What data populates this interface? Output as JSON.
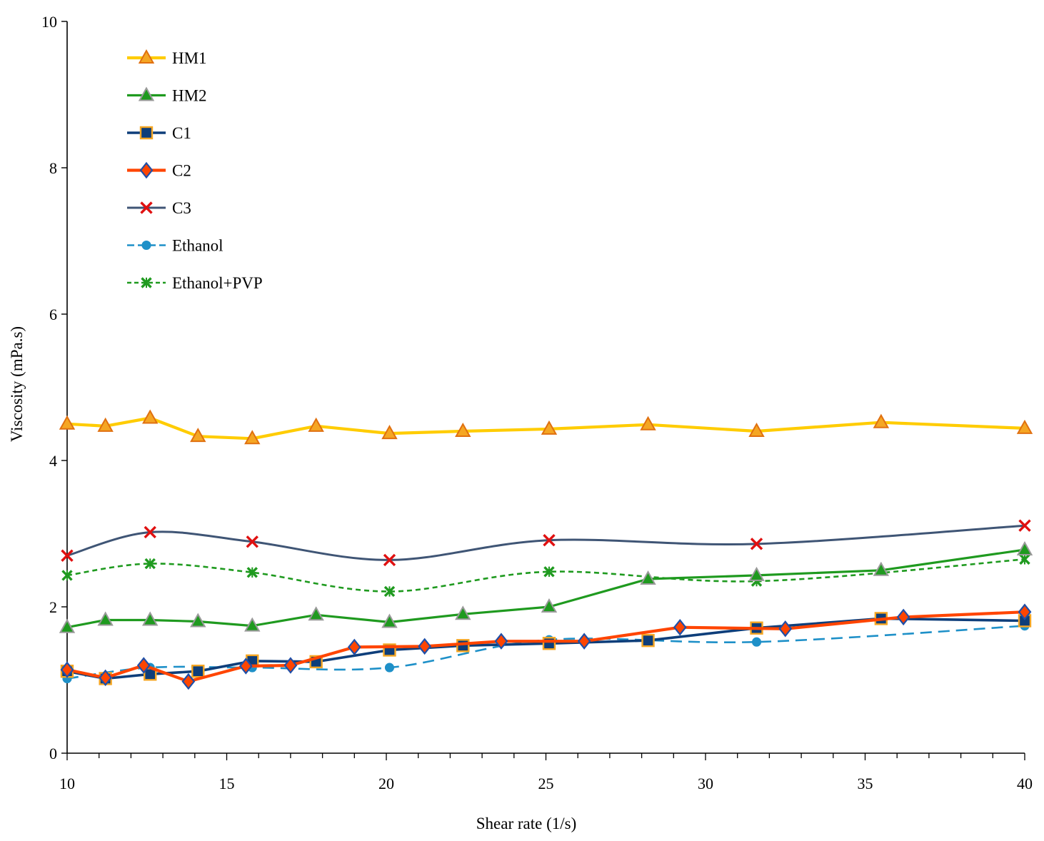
{
  "chart_data": {
    "type": "line",
    "title": "",
    "xlabel": "Shear rate (1/s)",
    "ylabel": "Viscosity  (mPa.s)",
    "xlim": [
      10,
      40
    ],
    "ylim": [
      0,
      10
    ],
    "xticks": [
      10,
      15,
      20,
      25,
      30,
      35,
      40
    ],
    "yticks": [
      0,
      2,
      4,
      6,
      8,
      10
    ],
    "x_minor_step": 1,
    "legend_position": "top-left",
    "grid": false,
    "series": [
      {
        "name": "HM1",
        "color": "#FFCC00",
        "line": "solid",
        "marker": "triangle",
        "marker_fill": "#F5A623",
        "marker_stroke": "#E07010",
        "points": [
          [
            10,
            4.5
          ],
          [
            11.2,
            4.47
          ],
          [
            12.6,
            4.58
          ],
          [
            14.1,
            4.33
          ],
          [
            15.8,
            4.3
          ],
          [
            17.8,
            4.47
          ],
          [
            20.1,
            4.37
          ],
          [
            22.4,
            4.4
          ],
          [
            25.1,
            4.43
          ],
          [
            28.2,
            4.49
          ],
          [
            31.6,
            4.4
          ],
          [
            35.5,
            4.52
          ],
          [
            40,
            4.44
          ]
        ]
      },
      {
        "name": "HM2",
        "color": "#1F9A1F",
        "line": "solid",
        "marker": "triangle",
        "marker_fill": "#1F9A1F",
        "marker_stroke": "#9A9A9A",
        "points": [
          [
            10,
            1.72
          ],
          [
            11.2,
            1.82
          ],
          [
            12.6,
            1.82
          ],
          [
            14.1,
            1.8
          ],
          [
            15.8,
            1.74
          ],
          [
            17.8,
            1.89
          ],
          [
            20.1,
            1.79
          ],
          [
            22.4,
            1.9
          ],
          [
            25.1,
            2.0
          ],
          [
            28.2,
            2.38
          ],
          [
            31.6,
            2.43
          ],
          [
            35.5,
            2.5
          ],
          [
            40,
            2.78
          ]
        ]
      },
      {
        "name": "C1",
        "color": "#0E3E7A",
        "line": "solid",
        "marker": "square",
        "marker_fill": "#0E3E7A",
        "marker_stroke": "#F5A623",
        "points": [
          [
            10,
            1.12
          ],
          [
            11.2,
            1.02
          ],
          [
            12.6,
            1.08
          ],
          [
            14.1,
            1.12
          ],
          [
            15.8,
            1.26
          ],
          [
            17.8,
            1.25
          ],
          [
            20.1,
            1.41
          ],
          [
            22.4,
            1.47
          ],
          [
            25.1,
            1.5
          ],
          [
            28.2,
            1.54
          ],
          [
            31.6,
            1.71
          ],
          [
            35.5,
            1.84
          ],
          [
            40,
            1.81
          ]
        ]
      },
      {
        "name": "C2",
        "color": "#FF4500",
        "line": "solid",
        "marker": "diamond",
        "marker_fill": "#FF4500",
        "marker_stroke": "#1F4FA8",
        "points": [
          [
            10,
            1.14
          ],
          [
            11.2,
            1.03
          ],
          [
            12.4,
            1.2
          ],
          [
            13.8,
            0.98
          ],
          [
            15.6,
            1.19
          ],
          [
            17.0,
            1.2
          ],
          [
            19.0,
            1.45
          ],
          [
            21.2,
            1.46
          ],
          [
            23.6,
            1.53
          ],
          [
            26.2,
            1.53
          ],
          [
            29.2,
            1.72
          ],
          [
            32.5,
            1.7
          ],
          [
            36.2,
            1.86
          ],
          [
            40,
            1.93
          ]
        ]
      },
      {
        "name": "C3",
        "color": "#3F5575",
        "line": "smooth",
        "marker": "x",
        "marker_fill": "none",
        "marker_stroke": "#E01010",
        "points": [
          [
            10,
            2.7
          ],
          [
            12.6,
            3.02
          ],
          [
            15.8,
            2.89
          ],
          [
            20.1,
            2.64
          ],
          [
            25.1,
            2.91
          ],
          [
            31.6,
            2.86
          ],
          [
            40,
            3.11
          ]
        ]
      },
      {
        "name": "Ethanol",
        "color": "#1E90C8",
        "line": "dashed",
        "marker": "circle",
        "marker_fill": "#1E90C8",
        "marker_stroke": "#1E90C8",
        "points": [
          [
            10,
            1.02
          ],
          [
            12.6,
            1.17
          ],
          [
            15.8,
            1.17
          ],
          [
            20.1,
            1.17
          ],
          [
            25.1,
            1.55
          ],
          [
            31.6,
            1.52
          ],
          [
            40,
            1.74
          ]
        ]
      },
      {
        "name": "Ethanol+PVP",
        "color": "#1F9A1F",
        "line": "dotted",
        "marker": "star",
        "marker_fill": "#1F9A1F",
        "marker_stroke": "#1F9A1F",
        "points": [
          [
            10,
            2.43
          ],
          [
            12.6,
            2.59
          ],
          [
            15.8,
            2.47
          ],
          [
            20.1,
            2.21
          ],
          [
            25.1,
            2.48
          ],
          [
            31.6,
            2.35
          ],
          [
            40,
            2.65
          ]
        ]
      }
    ]
  }
}
